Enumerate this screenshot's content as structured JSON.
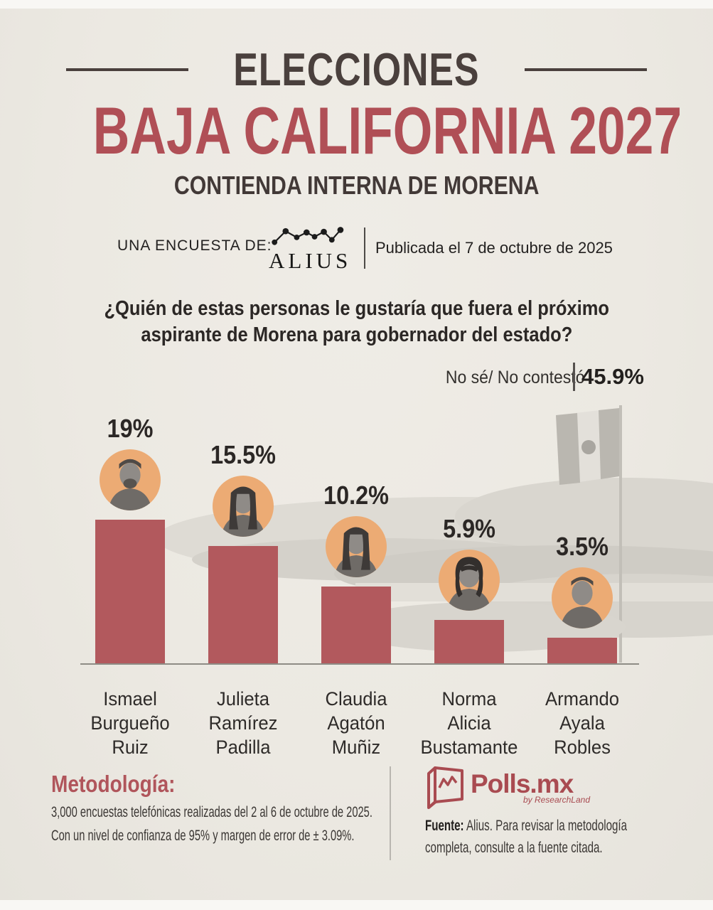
{
  "header": {
    "kicker": "ELECCIONES",
    "title": "BAJA CALIFORNIA 2027",
    "subtitle": "CONTIENDA INTERNA DE MORENA"
  },
  "pollster": {
    "label": "UNA ENCUESTA DE:",
    "logo_text": "ALIUS",
    "logo_icon": "alius-dotted-line-chart-icon",
    "published": "Publicada el 7 de octubre de 2025"
  },
  "question": {
    "line1": "¿Quién de estas personas le gustaría que fuera el próximo",
    "line2": "aspirante de Morena para gobernador del estado?"
  },
  "no_answer": {
    "label": "No sé/ No contestó",
    "value": "45.9%"
  },
  "chart_data": {
    "type": "bar",
    "title": "¿Quién de estas personas le gustaría que fuera el próximo aspirante de Morena para gobernador del estado?",
    "categories": [
      "Ismael Burgueño Ruiz",
      "Julieta Ramírez Padilla",
      "Claudia Agatón Muñiz",
      "Norma Alicia Bustamante",
      "Armando Ayala Robles"
    ],
    "values": [
      19,
      15.5,
      10.2,
      5.9,
      3.5
    ],
    "value_labels": [
      "19%",
      "15.5%",
      "10.2%",
      "5.9%",
      "3.5%"
    ],
    "no_answer": {
      "label": "No sé/ No contestó",
      "value": 45.9
    },
    "ylim": [
      0,
      20
    ],
    "bar_color": "#b2595d",
    "avatar_bg": "#ecab74",
    "candidates": [
      {
        "name_lines": [
          "Ismael",
          "Burgueño",
          "Ruiz"
        ],
        "pct_label": "19%",
        "value": 19,
        "silhouette": "man-beard"
      },
      {
        "name_lines": [
          "Julieta",
          "Ramírez",
          "Padilla"
        ],
        "pct_label": "15.5%",
        "value": 15.5,
        "silhouette": "woman-long"
      },
      {
        "name_lines": [
          "Claudia",
          "Agatón",
          "Muñiz"
        ],
        "pct_label": "10.2%",
        "value": 10.2,
        "silhouette": "woman-long"
      },
      {
        "name_lines": [
          "Norma",
          "Alicia",
          "Bustamante"
        ],
        "pct_label": "5.9%",
        "value": 5.9,
        "silhouette": "woman-bob"
      },
      {
        "name_lines": [
          "Armando",
          "Ayala",
          "Robles"
        ],
        "pct_label": "3.5%",
        "value": 3.5,
        "silhouette": "man-short"
      }
    ],
    "background_watermark": "faded-bay-landscape-with-mexican-flag-photo"
  },
  "footer": {
    "methodology_title": "Metodología:",
    "methodology_line1": "3,000 encuestas telefónicas realizadas del 2 al 6 de octubre de 2025.",
    "methodology_line2": "Con un nivel de confianza de 95% y margen de error de ± 3.09%.",
    "brand": {
      "name": "Polls.mx",
      "byline": "by ResearchLand",
      "icon": "polls-mx-chart-speech-bubble-icon"
    },
    "fuente_label": "Fuente:",
    "fuente_line1": " Alius. Para revisar la metodología",
    "fuente_line2": "completa, consulte a la fuente citada."
  }
}
